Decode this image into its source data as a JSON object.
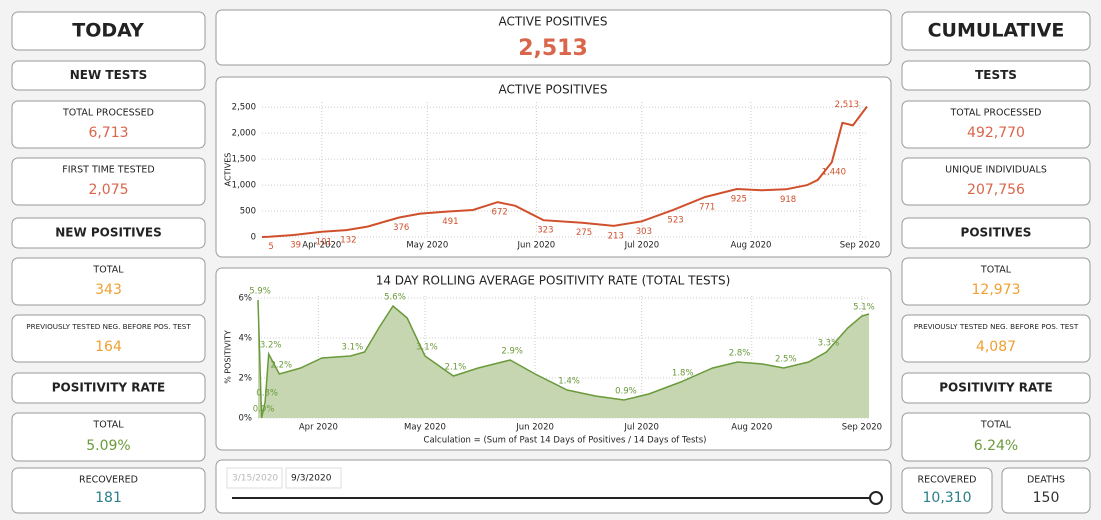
{
  "today": {
    "title": "TODAY",
    "items": [
      {
        "heading": "NEW TESTS"
      },
      {
        "label": "TOTAL PROCESSED",
        "value": "6,713",
        "color": "#d9654a"
      },
      {
        "label": "FIRST TIME TESTED",
        "value": "2,075",
        "color": "#d9654a"
      },
      {
        "heading": "NEW POSITIVES"
      },
      {
        "label": "TOTAL",
        "value": "343",
        "color": "#f0a030"
      },
      {
        "label": "PREVIOUSLY TESTED NEG. BEFORE POS. TEST",
        "value": "164",
        "color": "#f0a030"
      },
      {
        "heading": "POSITIVITY RATE"
      },
      {
        "label": "TOTAL",
        "value": "5.09%",
        "color": "#6a9a3a"
      },
      {
        "label": "RECOVERED",
        "value": "181",
        "color": "#2a7f8a"
      }
    ]
  },
  "cumulative": {
    "title": "CUMULATIVE",
    "items": [
      {
        "heading": "TESTS"
      },
      {
        "label": "TOTAL PROCESSED",
        "value": "492,770",
        "color": "#d9654a"
      },
      {
        "label": "UNIQUE INDIVIDUALS",
        "value": "207,756",
        "color": "#d9654a"
      },
      {
        "heading": "POSITIVES"
      },
      {
        "label": "TOTAL",
        "value": "12,973",
        "color": "#f0a030"
      },
      {
        "label": "PREVIOUSLY TESTED NEG. BEFORE POS. TEST",
        "value": "4,087",
        "color": "#f0a030"
      },
      {
        "heading": "POSITIVITY RATE"
      },
      {
        "label": "TOTAL",
        "value": "6.24%",
        "color": "#6a9a3a"
      },
      {
        "label": "RECOVERED",
        "value": "10,310",
        "color": "#2a7f8a"
      },
      {
        "label": "DEATHS",
        "value": "150",
        "color": "#333333"
      }
    ]
  },
  "active_positives": {
    "label": "ACTIVE POSITIVES",
    "value": "2,513",
    "color": "#d9654a"
  },
  "chart_data": [
    {
      "type": "line",
      "title": "ACTIVE POSITIVES",
      "y_label": "ACTIVES",
      "color": "#d0502c",
      "grid": true,
      "xlim": [
        0,
        172
      ],
      "xticks": [
        {
          "value": 17,
          "label": "Apr 2020"
        },
        {
          "value": 47,
          "label": "May 2020"
        },
        {
          "value": 78,
          "label": "Jun 2020"
        },
        {
          "value": 108,
          "label": "Jul 2020"
        },
        {
          "value": 139,
          "label": "Aug 2020"
        },
        {
          "value": 170,
          "label": "Sep 2020"
        }
      ],
      "ylim": [
        0,
        2600
      ],
      "yticks": [
        0,
        500,
        {
          "value": 1000,
          "label": "1,000"
        },
        {
          "value": 1500,
          "label": "1,500"
        },
        {
          "value": 2000,
          "label": "2,000"
        },
        {
          "value": 2500,
          "label": "2,500"
        }
      ],
      "x": [
        0,
        2,
        9,
        17,
        24,
        30,
        39,
        45,
        53,
        60,
        67,
        72,
        80,
        91,
        100,
        108,
        117,
        126,
        135,
        142,
        149,
        155,
        158,
        162,
        165,
        168,
        172
      ],
      "values": [
        0,
        5,
        39,
        101,
        132,
        200,
        376,
        450,
        491,
        520,
        672,
        600,
        323,
        275,
        213,
        303,
        523,
        771,
        925,
        900,
        918,
        1000,
        1100,
        1440,
        2200,
        2150,
        2513
      ],
      "value_labels": [
        null,
        "5",
        "39",
        "101",
        "132",
        null,
        "376",
        null,
        "491",
        null,
        "672",
        null,
        "323",
        "275",
        "213",
        "303",
        "523",
        "771",
        "925",
        null,
        "918",
        null,
        null,
        "1,440",
        null,
        null,
        "2,513"
      ]
    },
    {
      "type": "area",
      "title": "14 DAY ROLLING AVERAGE POSITIVITY RATE (TOTAL TESTS)",
      "y_label": "% POSITIVITY",
      "footnote": "Calculation = (Sum of Past 14 Days of Positives / 14 Days of Tests)",
      "color": "#6a9a3a",
      "fill": "#c5d6b0",
      "grid": true,
      "xlim": [
        0,
        172
      ],
      "xticks": [
        {
          "value": 17,
          "label": "Apr 2020"
        },
        {
          "value": 47,
          "label": "May 2020"
        },
        {
          "value": 78,
          "label": "Jun 2020"
        },
        {
          "value": 108,
          "label": "Jul 2020"
        },
        {
          "value": 139,
          "label": "Aug 2020"
        },
        {
          "value": 170,
          "label": "Sep 2020"
        }
      ],
      "ylim": [
        0,
        6.1
      ],
      "yticks": [
        {
          "value": 0,
          "label": "0%"
        },
        {
          "value": 2,
          "label": "2%"
        },
        {
          "value": 4,
          "label": "4%"
        },
        {
          "value": 6,
          "label": "6%"
        }
      ],
      "x": [
        0,
        1,
        2,
        3,
        6,
        12,
        18,
        26,
        30,
        34,
        38,
        42,
        47,
        55,
        62,
        71,
        78,
        87,
        95,
        103,
        110,
        119,
        128,
        135,
        142,
        148,
        155,
        160,
        166,
        170,
        172
      ],
      "values": [
        5.9,
        0.0,
        0.8,
        3.2,
        2.2,
        2.5,
        3.0,
        3.1,
        3.3,
        4.5,
        5.6,
        5.0,
        3.1,
        2.1,
        2.5,
        2.9,
        2.2,
        1.4,
        1.1,
        0.9,
        1.2,
        1.8,
        2.5,
        2.8,
        2.7,
        2.5,
        2.8,
        3.3,
        4.5,
        5.1,
        5.2
      ],
      "value_labels": [
        "5.9%",
        "0.0%",
        "0.8%",
        "3.2%",
        "2.2%",
        null,
        null,
        "3.1%",
        null,
        null,
        "5.6%",
        null,
        "3.1%",
        "2.1%",
        null,
        "2.9%",
        null,
        "1.4%",
        null,
        "0.9%",
        null,
        "1.8%",
        null,
        "2.8%",
        null,
        "2.5%",
        null,
        "3.3%",
        null,
        "5.1%",
        null
      ]
    }
  ],
  "slider": {
    "start": "3/15/2020",
    "end": "9/3/2020"
  }
}
